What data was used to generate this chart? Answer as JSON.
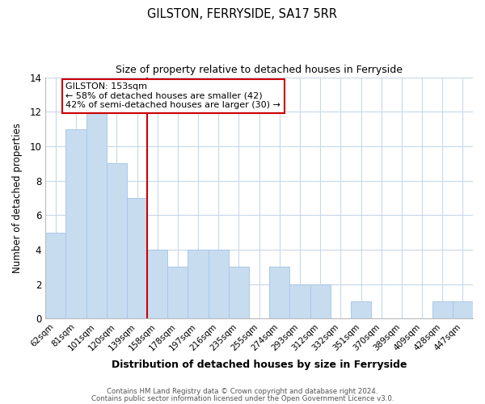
{
  "title": "GILSTON, FERRYSIDE, SA17 5RR",
  "subtitle": "Size of property relative to detached houses in Ferryside",
  "xlabel": "Distribution of detached houses by size in Ferryside",
  "ylabel": "Number of detached properties",
  "categories": [
    "62sqm",
    "81sqm",
    "101sqm",
    "120sqm",
    "139sqm",
    "158sqm",
    "178sqm",
    "197sqm",
    "216sqm",
    "235sqm",
    "255sqm",
    "274sqm",
    "293sqm",
    "312sqm",
    "332sqm",
    "351sqm",
    "370sqm",
    "389sqm",
    "409sqm",
    "428sqm",
    "447sqm"
  ],
  "values": [
    5,
    11,
    12,
    9,
    7,
    4,
    3,
    4,
    4,
    3,
    0,
    3,
    2,
    2,
    0,
    1,
    0,
    0,
    0,
    1,
    1
  ],
  "bar_color": "#c8dcf0",
  "bar_edge_color": "#a8c8e8",
  "gilston_line_color": "#cc0000",
  "annotation_text": "GILSTON: 153sqm\n← 58% of detached houses are smaller (42)\n42% of semi-detached houses are larger (30) →",
  "annotation_box_edgecolor": "#cc0000",
  "annotation_box_facecolor": "#ffffff",
  "ylim": [
    0,
    14
  ],
  "yticks": [
    0,
    2,
    4,
    6,
    8,
    10,
    12,
    14
  ],
  "footer1": "Contains HM Land Registry data © Crown copyright and database right 2024.",
  "footer2": "Contains public sector information licensed under the Open Government Licence v3.0.",
  "background_color": "#ffffff",
  "grid_color": "#c8d8e8"
}
